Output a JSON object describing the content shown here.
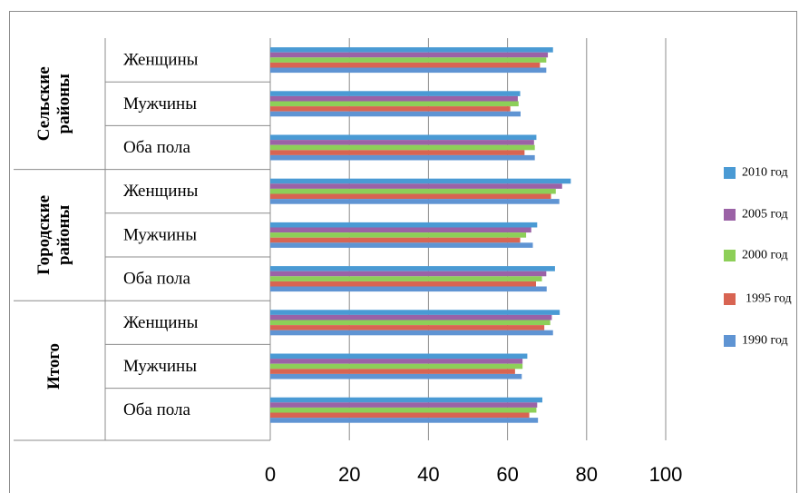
{
  "chart_data": {
    "type": "bar",
    "orientation": "horizontal",
    "xlim": [
      0,
      100
    ],
    "x_ticks": [
      0,
      20,
      40,
      60,
      80,
      100
    ],
    "grid": true,
    "legend_position": "right",
    "groups": [
      {
        "label": "Сельские районы",
        "lines": [
          "Сельские",
          "районы"
        ],
        "categories": [
          "Женщины",
          "Мужчины",
          "Оба пола"
        ]
      },
      {
        "label": "Городские районы",
        "lines": [
          "Городские",
          "районы"
        ],
        "categories": [
          "Женщины",
          "Мужчины",
          "Оба пола"
        ]
      },
      {
        "label": "Итого",
        "lines": [
          "Итого"
        ],
        "categories": [
          "Женщины",
          "Мужчины",
          "Оба пола"
        ]
      }
    ],
    "series": [
      {
        "name": "2010 год",
        "color": "#4a9ad4",
        "values": [
          71.5,
          63.2,
          67.3,
          76.0,
          67.5,
          72.0,
          73.2,
          65.0,
          68.8
        ]
      },
      {
        "name": "2005 год",
        "color": "#9b62a6",
        "values": [
          70.2,
          62.6,
          66.7,
          73.8,
          66.0,
          69.8,
          71.2,
          63.8,
          67.5
        ]
      },
      {
        "name": "2000 год",
        "color": "#8dcf58",
        "values": [
          69.8,
          62.8,
          66.9,
          72.2,
          64.7,
          68.7,
          70.8,
          63.8,
          67.3
        ]
      },
      {
        "name": "1995 год",
        "color": "#d86452",
        "values": [
          68.2,
          60.7,
          64.3,
          71.0,
          63.2,
          67.2,
          69.3,
          61.9,
          65.5
        ]
      },
      {
        "name": "1990 год",
        "color": "#5f94d3",
        "values": [
          69.8,
          63.3,
          66.9,
          73.1,
          66.4,
          69.9,
          71.5,
          63.6,
          67.7
        ]
      }
    ]
  }
}
